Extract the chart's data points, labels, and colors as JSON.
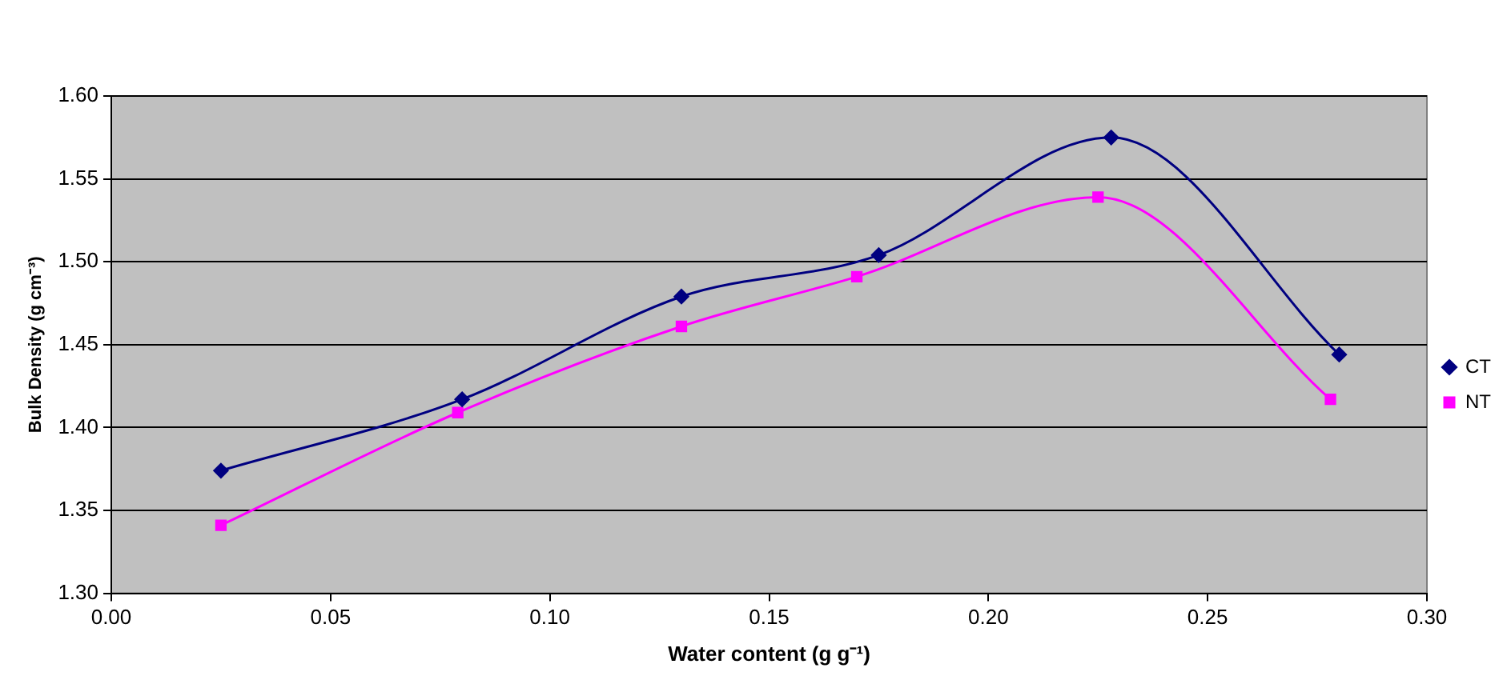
{
  "chart_data": {
    "type": "line",
    "xlabel": "Water content (g g⁻¹)",
    "ylabel": "Bulk Density (g cm⁻³)",
    "xlim": [
      0,
      0.3
    ],
    "xticks": [
      {
        "value": 0,
        "label": "0.00"
      },
      {
        "value": 0.05,
        "label": "0.05"
      },
      {
        "value": 0.1,
        "label": "0.10"
      },
      {
        "value": 0.15,
        "label": "0.15"
      },
      {
        "value": 0.2,
        "label": "0.20"
      },
      {
        "value": 0.25,
        "label": "0.25"
      },
      {
        "value": 0.3,
        "label": "0.30"
      }
    ],
    "ylim": [
      1.3,
      1.6
    ],
    "yticks": [
      {
        "value": 1.3,
        "label": "1.30"
      },
      {
        "value": 1.35,
        "label": "1.35"
      },
      {
        "value": 1.4,
        "label": "1.40"
      },
      {
        "value": 1.45,
        "label": "1.45"
      },
      {
        "value": 1.5,
        "label": "1.50"
      },
      {
        "value": 1.55,
        "label": "1.55"
      },
      {
        "value": 1.6,
        "label": "1.60"
      }
    ],
    "grid": "y",
    "legend": "right",
    "line_style": "solid",
    "series": [
      {
        "name": "CT",
        "color": "#000080",
        "marker": "diamond",
        "x": [
          0.025,
          0.08,
          0.13,
          0.175,
          0.228,
          0.28
        ],
        "values": [
          1.374,
          1.417,
          1.479,
          1.504,
          1.575,
          1.444
        ]
      },
      {
        "name": "NT",
        "color": "#ff00ff",
        "marker": "square",
        "x": [
          0.025,
          0.079,
          0.13,
          0.17,
          0.225,
          0.278
        ],
        "values": [
          1.341,
          1.409,
          1.461,
          1.491,
          1.539,
          1.417
        ]
      }
    ]
  }
}
